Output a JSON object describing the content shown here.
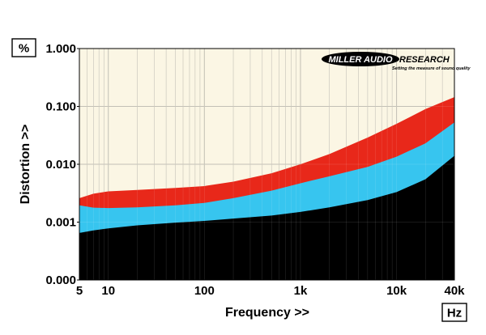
{
  "chart_data": {
    "type": "area",
    "title": "",
    "xlabel": "Frequency >>",
    "ylabel": "Distortion >>",
    "x_unit": "Hz",
    "y_unit": "%",
    "x_scale": "log",
    "y_scale": "log",
    "xlim": [
      5,
      40000
    ],
    "ylim": [
      0.0001,
      1
    ],
    "x_ticks": [
      5,
      10,
      100,
      1000,
      10000,
      40000
    ],
    "x_tick_labels": [
      "5",
      "10",
      "100",
      "1k",
      "10k",
      "40k"
    ],
    "y_ticks": [
      0.0001,
      0.001,
      0.01,
      0.1,
      1
    ],
    "y_tick_labels": [
      "0.000",
      "0.001",
      "0.010",
      "0.100",
      "1.000"
    ],
    "grid": true,
    "legend": "none",
    "series": [
      {
        "color": "#e8281a",
        "x": [
          5,
          7,
          10,
          20,
          50,
          100,
          200,
          500,
          1000,
          2000,
          5000,
          10000,
          20000,
          40000
        ],
        "values": [
          0.0026,
          0.0031,
          0.0034,
          0.0036,
          0.0039,
          0.0042,
          0.005,
          0.007,
          0.01,
          0.015,
          0.029,
          0.05,
          0.09,
          0.145
        ]
      },
      {
        "color": "#37c5ef",
        "x": [
          5,
          7,
          10,
          20,
          50,
          100,
          200,
          500,
          1000,
          2000,
          5000,
          10000,
          20000,
          40000
        ],
        "values": [
          0.00195,
          0.00178,
          0.00175,
          0.0018,
          0.00195,
          0.00215,
          0.0026,
          0.0035,
          0.0047,
          0.0062,
          0.009,
          0.0135,
          0.023,
          0.053
        ]
      },
      {
        "color": "#000000",
        "x": [
          5,
          7,
          10,
          20,
          50,
          100,
          200,
          500,
          1000,
          2000,
          5000,
          10000,
          20000,
          40000
        ],
        "values": [
          0.00065,
          0.00072,
          0.00078,
          0.00088,
          0.00098,
          0.00105,
          0.00115,
          0.0013,
          0.0015,
          0.0018,
          0.0024,
          0.0033,
          0.0055,
          0.014
        ]
      }
    ]
  },
  "logo": {
    "left": "MILLER AUDIO",
    "right": "RESEARCH",
    "tagline": "Setting the measure of sound quality"
  },
  "colors": {
    "plot_background": "#fbf6e4",
    "grid": "#bdbaae"
  }
}
